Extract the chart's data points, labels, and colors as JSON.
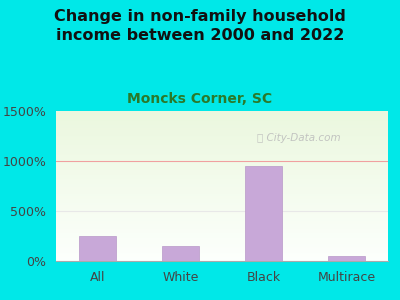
{
  "title": "Change in non-family household\nincome between 2000 and 2022",
  "subtitle": "Moncks Corner, SC",
  "categories": [
    "All",
    "White",
    "Black",
    "Multirace"
  ],
  "values": [
    250,
    150,
    950,
    50
  ],
  "bar_color": "#c8a8d8",
  "bar_edge_color": "#b898c8",
  "background_color": "#00e8e8",
  "title_color": "#111111",
  "subtitle_color": "#2a7a2a",
  "watermark_color": "#bbbbbb",
  "ylim": [
    0,
    1500
  ],
  "yticks": [
    0,
    500,
    1000,
    1500
  ],
  "ytick_labels": [
    "0%",
    "500%",
    "1000%",
    "1500%"
  ],
  "grid_color": "#f0a0a0",
  "title_fontsize": 11.5,
  "subtitle_fontsize": 10,
  "tick_fontsize": 9
}
